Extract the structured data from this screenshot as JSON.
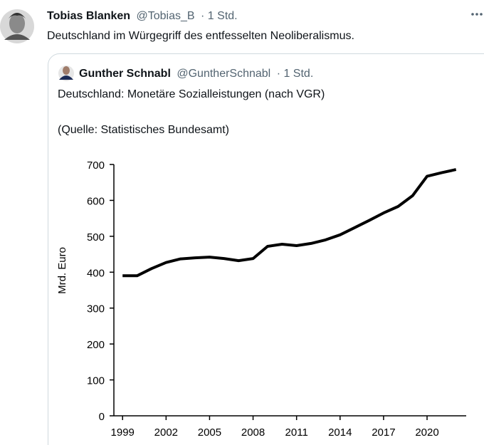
{
  "tweet": {
    "author_name": "Tobias Blanken",
    "author_handle": "@Tobias_B",
    "time": "· 1 Std.",
    "text": "Deutschland im Würgegriff des entfesselten Neoliberalismus."
  },
  "quoted_tweet": {
    "author_name": "Gunther Schnabl",
    "author_handle": "@GuntherSchnabl",
    "time": "· 1 Std.",
    "text": "Deutschland: Monetäre Sozialleistungen (nach VGR)",
    "source": "(Quelle: Statistisches Bundesamt)"
  },
  "chart_data": {
    "type": "line",
    "y_label": "Mrd. Euro",
    "x": [
      1999,
      2000,
      2001,
      2002,
      2003,
      2004,
      2005,
      2006,
      2007,
      2008,
      2009,
      2010,
      2011,
      2012,
      2013,
      2014,
      2015,
      2016,
      2017,
      2018,
      2019,
      2020,
      2021,
      2022
    ],
    "values": [
      390,
      390,
      410,
      427,
      437,
      440,
      442,
      438,
      432,
      438,
      472,
      478,
      474,
      480,
      490,
      504,
      524,
      544,
      565,
      583,
      613,
      667,
      677,
      686
    ],
    "color": "#000000",
    "xlim": [
      1998.4,
      2022.7
    ],
    "xticks": [
      1999,
      2002,
      2005,
      2008,
      2011,
      2014,
      2017,
      2020
    ],
    "ylim": [
      0,
      700
    ],
    "yticks": [
      0,
      100,
      200,
      300,
      400,
      500,
      600,
      700
    ],
    "grid": false
  }
}
